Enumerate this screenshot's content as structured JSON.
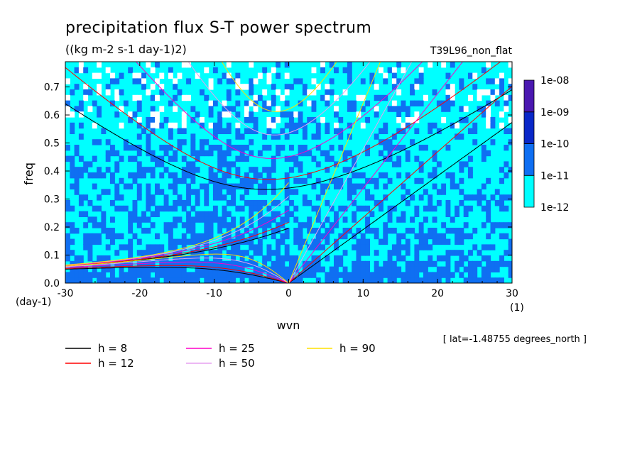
{
  "chart_data": {
    "type": "heatmap",
    "title": "precipitation flux S-T power spectrum",
    "subtitle": "((kg m-2 s-1 day-1)2)",
    "run_label": "T39L96_non_flat",
    "xlabel": "wvn",
    "ylabel": "freq",
    "x_unit": "(1)",
    "y_unit": "(day-1)",
    "xlim": [
      -30,
      30
    ],
    "ylim": [
      0,
      0.79
    ],
    "x_ticks": [
      -30,
      -20,
      -10,
      0,
      10,
      20,
      30
    ],
    "y_ticks": [
      0.0,
      0.1,
      0.2,
      0.3,
      0.4,
      0.5,
      0.6,
      0.7
    ],
    "x_tick_labels": [
      "-30",
      "-20",
      "-10",
      "0",
      "10",
      "20",
      "30"
    ],
    "y_tick_labels": [
      "0.0",
      "0.1",
      "0.2",
      "0.3",
      "0.4",
      "0.5",
      "0.6",
      "0.7"
    ],
    "note": "[ lat=-1.48755 degrees_north ]",
    "colorbar": {
      "levels": [
        "1e-12",
        "1e-11",
        "1e-10",
        "1e-09",
        "1e-08"
      ],
      "colors": [
        "#00ffff",
        "#0f6ff2",
        "#0a28c8",
        "#4a18b0"
      ]
    },
    "dispersion_curves": [
      {
        "label": "h =  8",
        "h": 8,
        "color": "#000000"
      },
      {
        "label": "h = 12",
        "h": 12,
        "color": "#ff0000"
      },
      {
        "label": "h = 25",
        "h": 25,
        "color": "#ff00c8"
      },
      {
        "label": "h = 50",
        "h": 50,
        "color": "#e6a0f0"
      },
      {
        "label": "h = 90",
        "h": 90,
        "color": "#ffe000"
      }
    ]
  }
}
